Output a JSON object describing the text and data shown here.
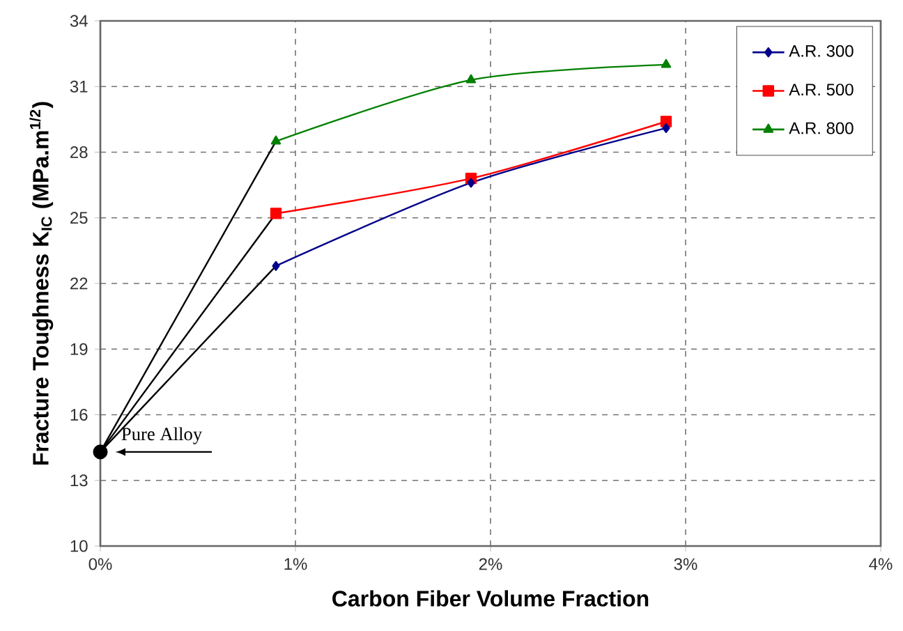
{
  "chart_data": {
    "type": "line",
    "xlabel": "Carbon Fiber Volume Fraction",
    "ylabel": "Fracture Toughness K$_{IC}$ (MPa.m$^{1/2}$)",
    "xlim": [
      0,
      4
    ],
    "xticks": [
      {
        "value": 0,
        "label": "0%"
      },
      {
        "value": 1,
        "label": "1%"
      },
      {
        "value": 2,
        "label": "2%"
      },
      {
        "value": 3,
        "label": "3%"
      },
      {
        "value": 4,
        "label": "4%"
      }
    ],
    "ylim": [
      10,
      34
    ],
    "yticks": [
      10,
      13,
      16,
      19,
      22,
      25,
      28,
      31,
      34
    ],
    "grid": true,
    "legend": "top right",
    "series": [
      {
        "name": "A.R. 300",
        "color": "#00008b",
        "marker": "diamond",
        "x": [
          0.9,
          1.9,
          2.9
        ],
        "values": [
          22.8,
          26.6,
          29.1
        ]
      },
      {
        "name": "A.R. 500",
        "color": "#ff0000",
        "marker": "square",
        "x": [
          0.9,
          1.9,
          2.9
        ],
        "values": [
          25.2,
          26.8,
          29.4
        ]
      },
      {
        "name": "A.R. 800",
        "color": "#008000",
        "marker": "triangle",
        "x": [
          0.9,
          1.9,
          2.9
        ],
        "values": [
          28.5,
          31.3,
          32.0
        ]
      },
      {
        "color": "#000000",
        "marker": "none",
        "x": [
          0,
          0.9
        ],
        "values": [
          14.3,
          22.8
        ]
      },
      {
        "color": "#000000",
        "marker": "none",
        "x": [
          0,
          0.9
        ],
        "values": [
          14.3,
          25.2
        ]
      },
      {
        "color": "#000000",
        "marker": "none",
        "x": [
          0,
          0.9
        ],
        "values": [
          14.3,
          28.5
        ]
      },
      {
        "type": "scatter",
        "color": "#000000",
        "marker": "circle",
        "x": [
          0
        ],
        "values": [
          14.3
        ]
      }
    ],
    "annotations": [
      {
        "text": "Pure Alloy",
        "x": 0,
        "y": 14.3
      }
    ]
  }
}
